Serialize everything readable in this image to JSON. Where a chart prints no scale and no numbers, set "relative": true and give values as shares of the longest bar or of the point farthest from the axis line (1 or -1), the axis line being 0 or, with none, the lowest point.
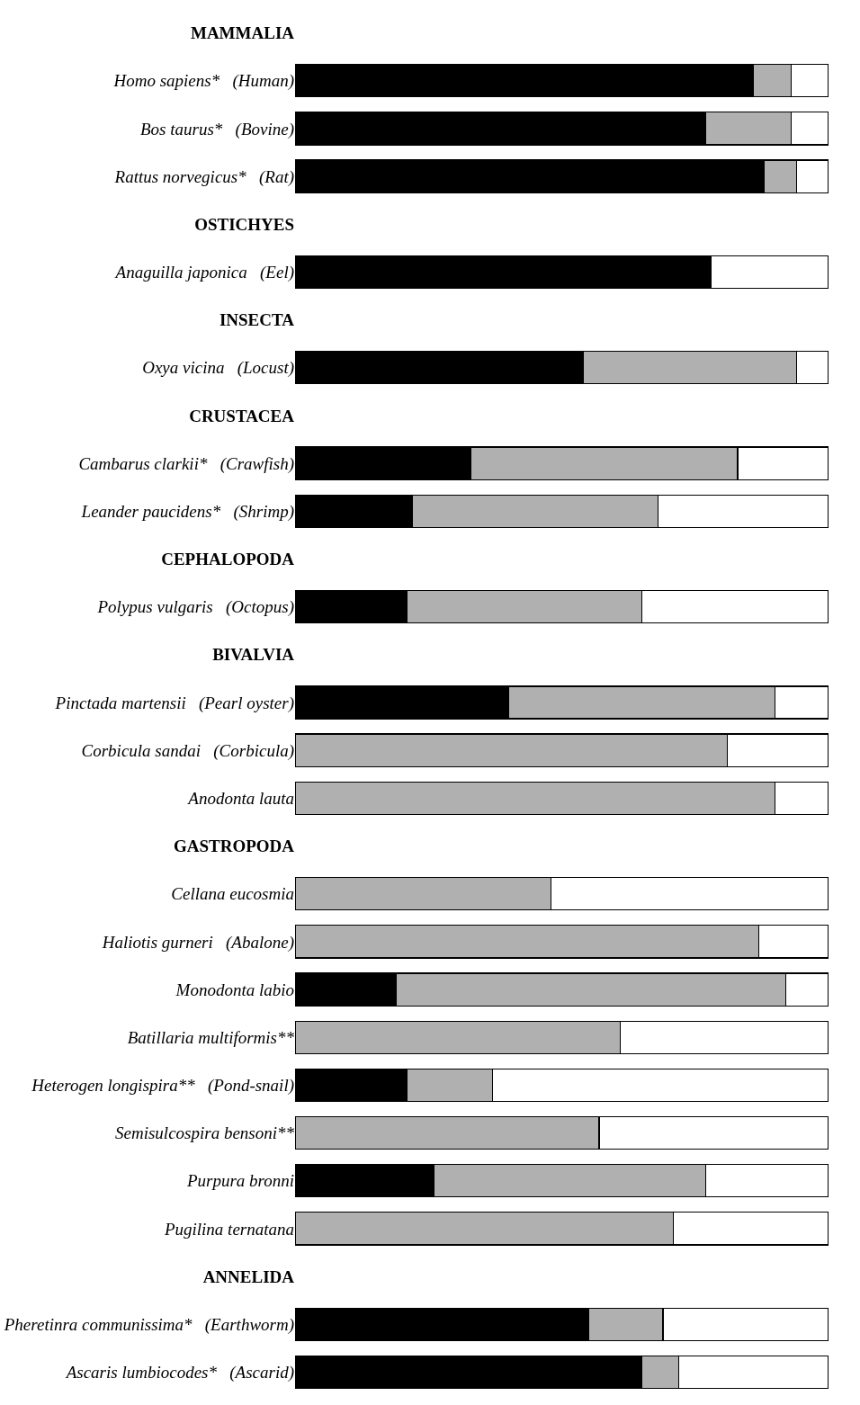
{
  "chart_data": {
    "type": "bar",
    "orientation": "horizontal",
    "stacked": true,
    "relative": true,
    "categories": [
      "MAMMALIA",
      "Homo sapiens*   (Human)",
      "Bos taurus*   (Bovine)",
      "Rattus norvegicus*   (Rat)",
      "OSTICHYES",
      "Anaguilla japonica   (Eel)",
      "INSECTA",
      "Oxya vicina   (Locust)",
      "CRUSTACEA",
      "Cambarus clarkii*   (Crawfish)",
      "Leander paucidens*   (Shrimp)",
      "CEPHALOPODA",
      "Polypus vulgaris   (Octopus)",
      "BIVALVIA",
      "Pinctada martensii   (Pearl oyster)",
      "Corbicula sandai   (Corbicula)",
      "Anodonta lauta",
      "GASTROPODA",
      "Cellana eucosmia",
      "Haliotis gurneri   (Abalone)",
      "Monodonta labio",
      "Batillaria multiformis**",
      "Heterogen longispira**   (Pond-snail)",
      "Semisulcospira bensoni**",
      "Purpura bronni",
      "Pugilina ternatana",
      "ANNELIDA",
      "Pheretinra communissima*   (Earthworm)",
      "Ascaris lumbiocodes*   (Ascarid)"
    ],
    "series": [
      {
        "color": "#000000",
        "values": [
          null,
          0.86,
          0.77,
          0.88,
          null,
          0.78,
          null,
          0.54,
          null,
          0.33,
          0.22,
          null,
          0.21,
          null,
          0.4,
          0,
          0,
          null,
          0,
          0,
          0.19,
          0,
          0.21,
          0,
          0.26,
          0,
          null,
          0.55,
          0.65
        ]
      },
      {
        "color": "#b0b0b0",
        "values": [
          null,
          0.07,
          0.16,
          0.06,
          null,
          0,
          null,
          0.4,
          null,
          0.5,
          0.46,
          null,
          0.44,
          null,
          0.5,
          0.81,
          0.9,
          null,
          0.48,
          0.87,
          0.73,
          0.61,
          0.16,
          0.57,
          0.51,
          0.71,
          null,
          0.14,
          0.07
        ]
      },
      {
        "color": "#ffffff",
        "values": [
          null,
          0.07,
          0.07,
          0.06,
          null,
          0.22,
          null,
          0.06,
          null,
          0.17,
          0.32,
          null,
          0.35,
          null,
          0.1,
          0.19,
          0.1,
          null,
          0.52,
          0.13,
          0.08,
          0.39,
          0.63,
          0.43,
          0.23,
          0.29,
          null,
          0.31,
          0.28
        ]
      }
    ]
  }
}
